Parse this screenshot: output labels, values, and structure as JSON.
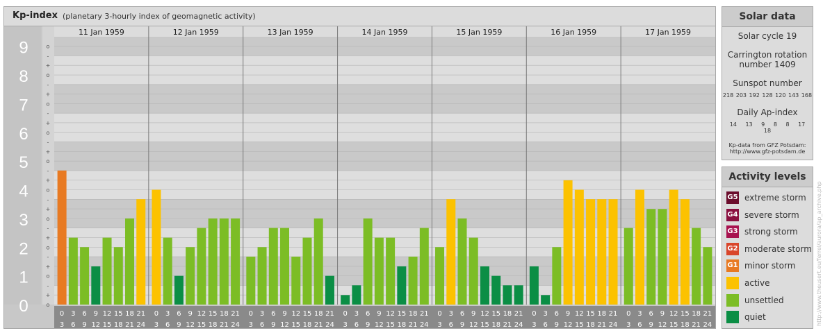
{
  "header": {
    "title": "Kp-index",
    "subtitle": "(planetary 3-hourly index of geomagnetic activity)"
  },
  "colors": {
    "quiet": "#0b8e45",
    "unsettled": "#7cbd25",
    "active": "#fcc200",
    "minor_storm": "#e87a22"
  },
  "chart_data": {
    "type": "bar",
    "y_ticks": [
      "0",
      "1",
      "2",
      "3",
      "4",
      "5",
      "6",
      "7",
      "8",
      "9"
    ],
    "minor_marks": [
      "-",
      "o",
      "+"
    ],
    "ylim": [
      0,
      9.33
    ],
    "days": [
      {
        "label": "11 Jan 1959",
        "kp": [
          4.67,
          2.33,
          2.0,
          1.33,
          2.33,
          2.0,
          3.0,
          3.67
        ]
      },
      {
        "label": "12 Jan 1959",
        "kp": [
          4.0,
          2.33,
          1.0,
          2.0,
          2.67,
          3.0,
          3.0,
          3.0
        ]
      },
      {
        "label": "13 Jan 1959",
        "kp": [
          1.67,
          2.0,
          2.67,
          2.67,
          1.67,
          2.33,
          3.0,
          1.0
        ]
      },
      {
        "label": "14 Jan 1959",
        "kp": [
          0.33,
          0.67,
          3.0,
          2.33,
          2.33,
          1.33,
          1.67,
          2.67
        ]
      },
      {
        "label": "15 Jan 1959",
        "kp": [
          2.0,
          3.67,
          3.0,
          2.33,
          1.33,
          1.0,
          0.67,
          0.67
        ]
      },
      {
        "label": "16 Jan 1959",
        "kp": [
          1.33,
          0.33,
          2.0,
          4.33,
          4.0,
          3.67,
          3.67,
          3.67
        ]
      },
      {
        "label": "17 Jan 1959",
        "kp": [
          2.67,
          4.0,
          3.33,
          3.33,
          4.0,
          3.67,
          2.67,
          2.0
        ]
      }
    ],
    "hour_labels": [
      [
        "0",
        "3"
      ],
      [
        "3",
        "6"
      ],
      [
        "6",
        "9"
      ],
      [
        "9",
        "12"
      ],
      [
        "12",
        "15"
      ],
      [
        "15",
        "18"
      ],
      [
        "18",
        "21"
      ],
      [
        "21",
        "24"
      ]
    ]
  },
  "solar_data": {
    "title": "Solar data",
    "solar_cycle": "Solar cycle 19",
    "carrington_line1": "Carrington rotation",
    "carrington_line2": "number 1409",
    "sunspot_title": "Sunspot number",
    "sunspot_values": "218 203 192 128 120 143 168",
    "ap_title": "Daily Ap-index",
    "ap_values": "14 13 9 8 8 17 18",
    "source_line1": "Kp-data from GFZ Potsdam:",
    "source_line2": "http://www.gfz-potsdam.de"
  },
  "activity_levels": {
    "title": "Activity levels",
    "items": [
      {
        "badge": "G5",
        "label": "extreme storm",
        "color": "#6b0d2c"
      },
      {
        "badge": "G4",
        "label": "severe storm",
        "color": "#8a0f3f"
      },
      {
        "badge": "G3",
        "label": "strong storm",
        "color": "#a8124f"
      },
      {
        "badge": "G2",
        "label": "moderate storm",
        "color": "#d9452a"
      },
      {
        "badge": "G1",
        "label": "minor storm",
        "color": "#e87a22"
      },
      {
        "badge": "",
        "label": "active",
        "color": "#fcc200"
      },
      {
        "badge": "",
        "label": "unsettled",
        "color": "#7cbd25"
      },
      {
        "badge": "",
        "label": "quiet",
        "color": "#0b8e45"
      }
    ]
  },
  "copyright": "http://www.theusert.eu/ferrel/aurora/ap_archive.php"
}
